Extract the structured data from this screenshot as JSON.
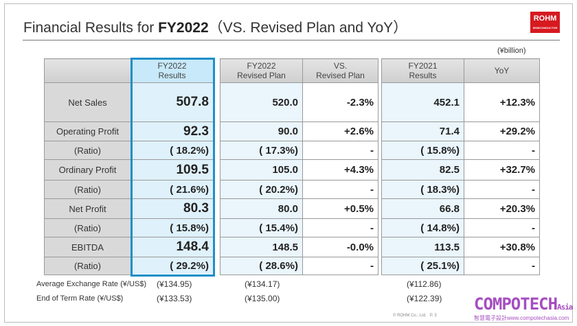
{
  "header": {
    "title_pre": "Financial Results for ",
    "title_bold": "FY2022",
    "title_post": "（VS. Revised Plan and YoY）",
    "logo": "ROHM",
    "logo_sub": "SEMICONDUCTOR",
    "unit": "(¥billion)"
  },
  "columns": {
    "fy22": [
      "FY2022",
      "Results"
    ],
    "plan": [
      "FY2022",
      "Revised Plan"
    ],
    "vs": [
      "VS.",
      "Revised Plan"
    ],
    "fy21": [
      "FY2021",
      "Results"
    ],
    "yoy": "YoY"
  },
  "rows": [
    {
      "label": "Net Sales",
      "fy22": "507.8",
      "plan": "520.0",
      "vs": "-2.3%",
      "fy21": "452.1",
      "yoy": "+12.3%",
      "type": "main"
    },
    {
      "label": "Operating Profit",
      "fy22": "92.3",
      "plan": "90.0",
      "vs": "+2.6%",
      "fy21": "71.4",
      "yoy": "+29.2%",
      "type": "main"
    },
    {
      "label": "(Ratio)",
      "fy22": "( 18.2%)",
      "plan": "( 17.3%)",
      "vs": "-",
      "fy21": "( 15.8%)",
      "yoy": "-",
      "type": "sub"
    },
    {
      "label": "Ordinary Profit",
      "fy22": "109.5",
      "plan": "105.0",
      "vs": "+4.3%",
      "fy21": "82.5",
      "yoy": "+32.7%",
      "type": "main"
    },
    {
      "label": "(Ratio)",
      "fy22": "( 21.6%)",
      "plan": "( 20.2%)",
      "vs": "-",
      "fy21": "( 18.3%)",
      "yoy": "-",
      "type": "sub"
    },
    {
      "label": "Net Profit",
      "fy22": "80.3",
      "plan": "80.0",
      "vs": "+0.5%",
      "fy21": "66.8",
      "yoy": "+20.3%",
      "type": "main"
    },
    {
      "label": "(Ratio)",
      "fy22": "( 15.8%)",
      "plan": "( 15.4%)",
      "vs": "-",
      "fy21": "( 14.8%)",
      "yoy": "-",
      "type": "sub"
    },
    {
      "label": "EBITDA",
      "fy22": "148.4",
      "plan": "148.5",
      "vs": "-0.0%",
      "fy21": "113.5",
      "yoy": "+30.8%",
      "type": "main"
    },
    {
      "label": "(Ratio)",
      "fy22": "( 29.2%)",
      "plan": "( 28.6%)",
      "vs": "-",
      "fy21": "( 25.1%)",
      "yoy": "-",
      "type": "sub"
    }
  ],
  "footer": {
    "avg_label": "Average Exchange Rate (¥/US$)",
    "avg_fy22": "(¥134.95)",
    "avg_plan": "(¥134.17)",
    "avg_fy21": "(¥112.86)",
    "end_label": "End of Term Rate (¥/US$)",
    "end_fy22": "(¥133.53)",
    "end_plan": "(¥135.00)",
    "end_fy21": "(¥122.39)",
    "copyright": "© ROHM Co., Ltd.",
    "page": "P. 3"
  },
  "watermark": {
    "main": "COMPOTECH",
    "asia": "Asia",
    "sub": "智慧電子設計www.compotechasia.com"
  }
}
